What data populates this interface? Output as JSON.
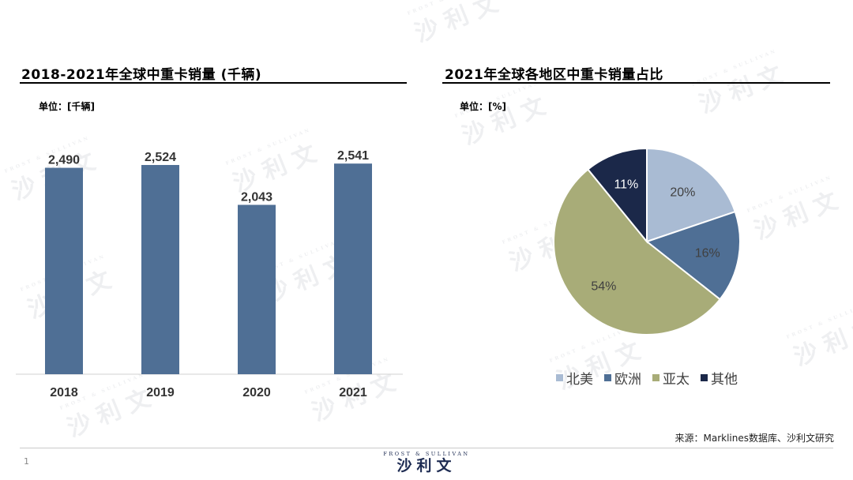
{
  "left_panel": {
    "title": "2018-2021年全球中重卡销量 (千辆)",
    "unit_label": "单位：[千辆]"
  },
  "right_panel": {
    "title": "2021年全球各地区中重卡销量占比",
    "unit_label": "单位：[%]"
  },
  "chart_data": [
    {
      "type": "bar",
      "title": "2018-2021年全球中重卡销量 (千辆)",
      "categories": [
        "2018",
        "2019",
        "2020",
        "2021"
      ],
      "values": [
        2490,
        2524,
        2043,
        2541
      ],
      "value_labels": [
        "2,490",
        "2,524",
        "2,043",
        "2,541"
      ],
      "ylim": [
        0,
        2800
      ],
      "grid": false,
      "bar_color": "#4f6f95"
    },
    {
      "type": "pie",
      "title": "2021年全球各地区中重卡销量占比",
      "categories": [
        "北美",
        "欧洲",
        "亚太",
        "其他"
      ],
      "values": [
        20,
        16,
        54,
        11
      ],
      "value_labels": [
        "20%",
        "16%",
        "54%",
        "11%"
      ],
      "colors": [
        "#a9bbd3",
        "#4f6f95",
        "#a8ac78",
        "#1b2849"
      ],
      "label_colors": [
        "#404040",
        "#404040",
        "#404040",
        "#ffffff"
      ],
      "start_angle_deg": 0,
      "direction": "clockwise",
      "legend_position": "bottom"
    }
  ],
  "source": "来源：Marklines数据库、沙利文研究",
  "page_number": "1",
  "brand": {
    "top_text": "FROST & SULLIVAN",
    "name": "沙利文"
  },
  "watermark": {
    "top_text": "FROST & SULLIVAN",
    "name": "沙利文"
  }
}
